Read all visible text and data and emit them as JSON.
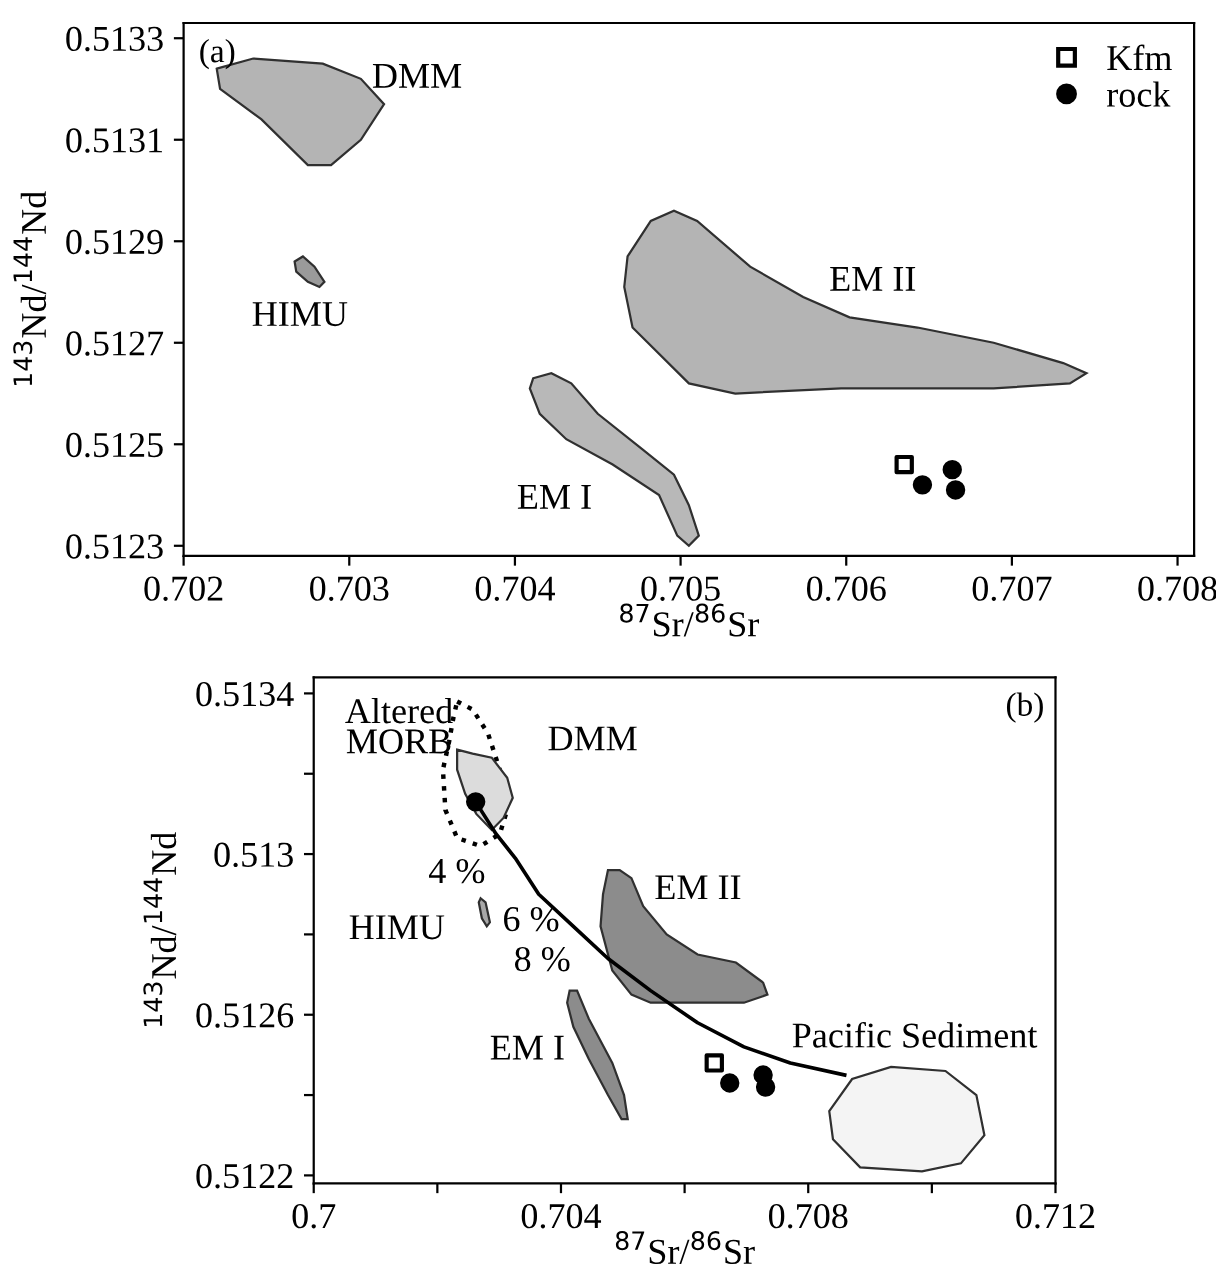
{
  "chart_data": [
    {
      "type": "scatter",
      "title": "(a)",
      "xlabel": "$^{87}$Sr/$^{86}$Sr",
      "ylabel": "$^{143}$Nd/$^{144}$Nd",
      "xlim": [
        0.702,
        0.7081
      ],
      "ylim": [
        0.51228,
        0.51333
      ],
      "xticks": [
        0.702,
        0.703,
        0.704,
        0.705,
        0.706,
        0.707,
        0.708
      ],
      "yticks": [
        0.5123,
        0.5125,
        0.5127,
        0.5129,
        0.5131,
        0.5133
      ],
      "grid": false,
      "legend": "top right",
      "series": [
        {
          "type": "area",
          "color": "#b4b4b4",
          "x": [
            0.7022,
            0.70242,
            0.70284,
            0.70307,
            0.70321,
            0.70307,
            0.70289,
            0.70275,
            0.70247,
            0.70222
          ],
          "values": [
            0.51324,
            0.51326,
            0.51325,
            0.51322,
            0.51317,
            0.5131,
            0.51305,
            0.51305,
            0.51314,
            0.5132
          ]
        },
        {
          "type": "area",
          "color": "#9a9a9a",
          "x": [
            0.70267,
            0.70272,
            0.70279,
            0.70285,
            0.70282,
            0.70275,
            0.70268
          ],
          "values": [
            0.51286,
            0.51287,
            0.51285,
            0.51282,
            0.51281,
            0.51282,
            0.51284
          ]
        },
        {
          "type": "area",
          "color": "#b4b4b4",
          "x": [
            0.70468,
            0.70482,
            0.70496,
            0.7051,
            0.70542,
            0.70574,
            0.70602,
            0.70643,
            0.70689,
            0.70731,
            0.70745,
            0.70735,
            0.70689,
            0.70597,
            0.70533,
            0.70505,
            0.70471,
            0.70466
          ],
          "values": [
            0.51287,
            0.51294,
            0.51296,
            0.51294,
            0.51285,
            0.51279,
            0.51275,
            0.51273,
            0.5127,
            0.51266,
            0.51264,
            0.51262,
            0.51261,
            0.51261,
            0.5126,
            0.51262,
            0.51273,
            0.51281
          ]
        },
        {
          "type": "area",
          "color": "#b8b8b8",
          "x": [
            0.70411,
            0.70422,
            0.70434,
            0.7045,
            0.70477,
            0.70496,
            0.70505,
            0.70511,
            0.70505,
            0.70498,
            0.70487,
            0.70459,
            0.70431,
            0.70415,
            0.70409
          ],
          "values": [
            0.51263,
            0.51264,
            0.51262,
            0.51256,
            0.51249,
            0.51244,
            0.51238,
            0.51232,
            0.5123,
            0.51232,
            0.5124,
            0.51246,
            0.51251,
            0.51256,
            0.51261
          ]
        },
        {
          "name": "Kfm",
          "marker": "square",
          "color": "#000000",
          "x": [
            0.70635
          ],
          "values": [
            0.51246
          ]
        },
        {
          "name": "rock",
          "marker": "circle",
          "color": "#000000",
          "x": [
            0.70646,
            0.70664,
            0.70666
          ],
          "values": [
            0.51242,
            0.51245,
            0.51241
          ]
        }
      ],
      "annotations": [
        "DMM",
        "HIMU",
        "EM II",
        "EM I"
      ]
    },
    {
      "type": "scatter",
      "title": "(b)",
      "xlabel": "$^{87}$Sr/$^{86}$Sr",
      "ylabel": "$^{143}$Nd/$^{144}$Nd",
      "xlim": [
        0.7,
        0.712
      ],
      "ylim": [
        0.51218,
        0.51344
      ],
      "xticks": [
        0.7,
        {
          "value": 0.702,
          "label": null
        },
        0.704,
        {
          "value": 0.706,
          "label": null
        },
        0.708,
        {
          "value": 0.71,
          "label": null
        },
        0.712
      ],
      "yticks": [
        0.5122,
        {
          "value": 0.5124,
          "label": null
        },
        0.5126,
        {
          "value": 0.5128,
          "label": null
        },
        0.513,
        {
          "value": 0.5132,
          "label": null
        },
        0.5134
      ],
      "grid": false,
      "series": [
        {
          "type": "area",
          "line_style": "dotted",
          "color": "#ffffff",
          "x": [
            0.70232,
            0.70257,
            0.70282,
            0.70301,
            0.70313,
            0.70301,
            0.7027,
            0.70232,
            0.70213,
            0.70209,
            0.70219,
            0.70226
          ],
          "values": [
            0.51338,
            0.51336,
            0.5133,
            0.51321,
            0.51311,
            0.51305,
            0.51302,
            0.51304,
            0.51311,
            0.51321,
            0.51328,
            0.51334
          ]
        },
        {
          "type": "area",
          "color": "#dcdcdc",
          "x": [
            0.70232,
            0.70257,
            0.70288,
            0.70313,
            0.70322,
            0.70307,
            0.70288,
            0.70263,
            0.70245,
            0.70232
          ],
          "values": [
            0.51326,
            0.51325,
            0.51324,
            0.51319,
            0.51314,
            0.51309,
            0.51306,
            0.5131,
            0.51315,
            0.51321
          ]
        },
        {
          "type": "area",
          "color": "#a8a8a8",
          "x": [
            0.7027,
            0.70278,
            0.70285,
            0.7028,
            0.70272,
            0.70267
          ],
          "values": [
            0.51289,
            0.51288,
            0.51283,
            0.51282,
            0.51284,
            0.51288
          ]
        },
        {
          "type": "area",
          "color": "#8c8c8c",
          "x": [
            0.70476,
            0.70495,
            0.70514,
            0.70533,
            0.70571,
            0.70621,
            0.70683,
            0.70727,
            0.70734,
            0.70696,
            0.70621,
            0.70545,
            0.70514,
            0.70483,
            0.70464,
            0.70468
          ],
          "values": [
            0.51296,
            0.51296,
            0.51294,
            0.51287,
            0.5128,
            0.51275,
            0.51273,
            0.51268,
            0.51265,
            0.51263,
            0.51263,
            0.51263,
            0.51265,
            0.51271,
            0.51282,
            0.5129
          ]
        },
        {
          "type": "area",
          "color": "#8c8c8c",
          "x": [
            0.70414,
            0.70426,
            0.70445,
            0.70483,
            0.70502,
            0.70508,
            0.70498,
            0.70476,
            0.70445,
            0.7042,
            0.7041
          ],
          "values": [
            0.51266,
            0.51266,
            0.51259,
            0.51248,
            0.5124,
            0.51234,
            0.51234,
            0.5124,
            0.51249,
            0.51257,
            0.51263
          ]
        },
        {
          "type": "area",
          "color": "#f4f4f4",
          "x": [
            0.70834,
            0.70871,
            0.70934,
            0.71022,
            0.71072,
            0.71085,
            0.71047,
            0.70984,
            0.70884,
            0.7084
          ],
          "values": [
            0.51236,
            0.51244,
            0.51247,
            0.51246,
            0.5124,
            0.5123,
            0.51223,
            0.51221,
            0.51222,
            0.51229
          ]
        },
        {
          "type": "line",
          "line_style": "solid",
          "color": "#000000",
          "x": [
            0.70262,
            0.70295,
            0.70326,
            0.70364,
            0.7042,
            0.70476,
            0.70545,
            0.70621,
            0.70696,
            0.70771,
            0.70859
          ],
          "values": [
            0.51313,
            0.51305,
            0.51299,
            0.5129,
            0.51282,
            0.51274,
            0.51266,
            0.51258,
            0.51252,
            0.51248,
            0.51245
          ]
        },
        {
          "marker": "circle",
          "color": "#000000",
          "x": [
            0.70262
          ],
          "values": [
            0.51313
          ]
        },
        {
          "marker": "square",
          "color": "#000000",
          "x": [
            0.70648
          ],
          "values": [
            0.51248
          ]
        },
        {
          "marker": "circle",
          "color": "#000000",
          "x": [
            0.70673,
            0.70727,
            0.70731
          ],
          "values": [
            0.51243,
            0.51245,
            0.51242
          ]
        }
      ],
      "annotations": [
        "Altered\nMORB",
        "DMM",
        "4 %",
        "HIMU",
        "6 %",
        "8 %",
        "EM II",
        "EM I",
        "Pacific Sediment"
      ]
    }
  ]
}
